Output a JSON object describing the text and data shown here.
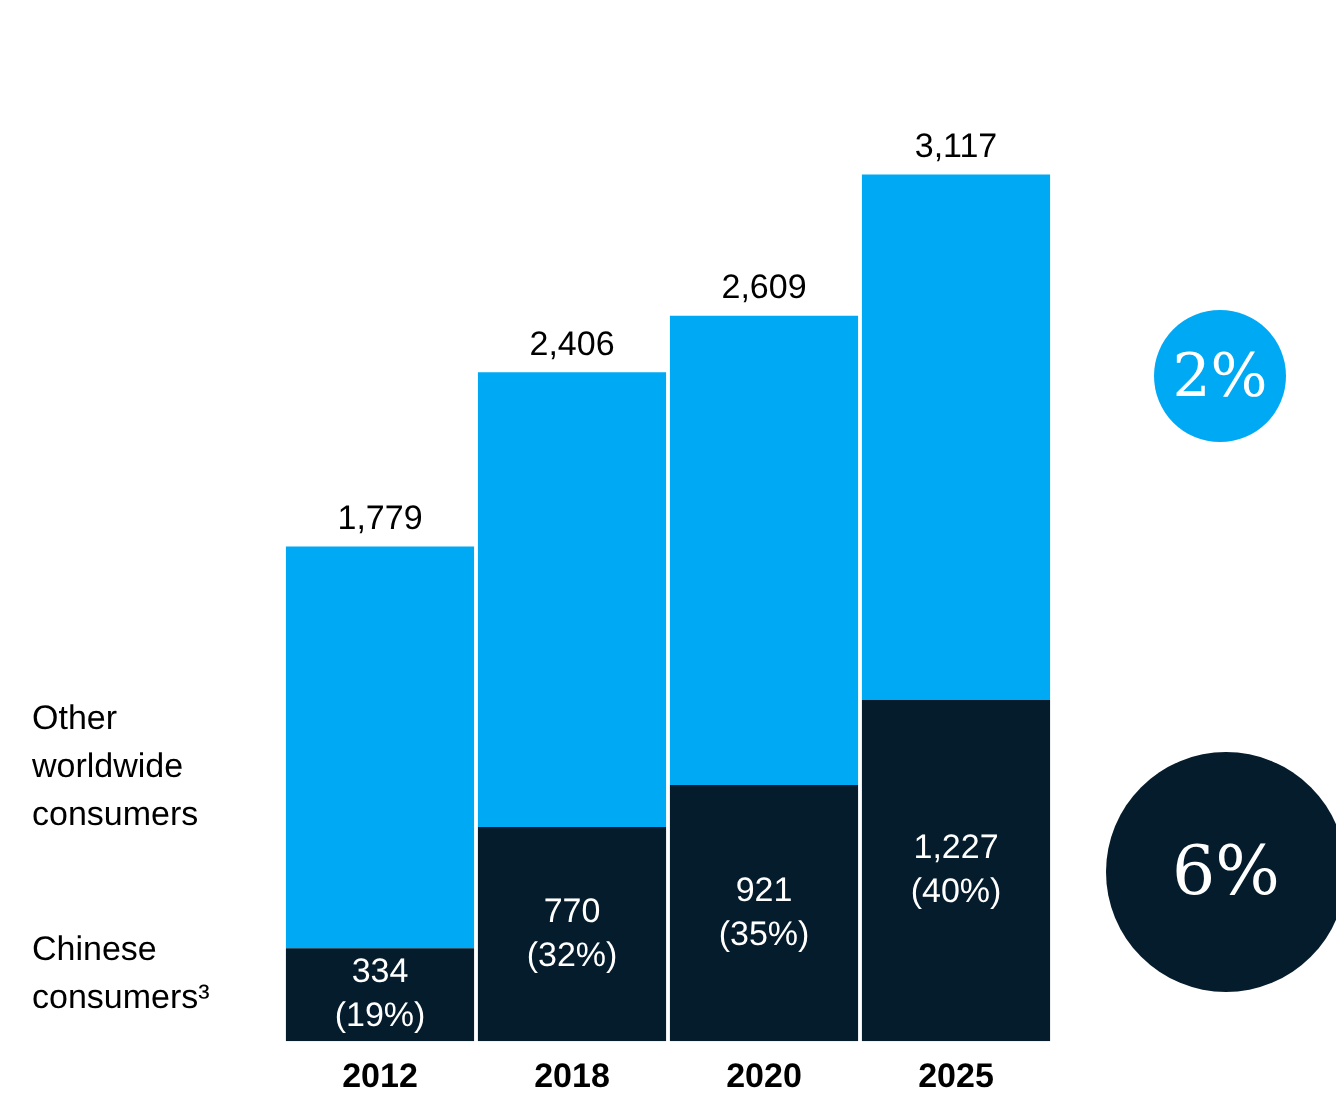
{
  "chart_data": {
    "type": "bar",
    "stacked": true,
    "categories": [
      "2012",
      "2018",
      "2020",
      "2025"
    ],
    "series": [
      {
        "name": "Chinese consumers³",
        "color": "#051c2c",
        "values": [
          334,
          770,
          921,
          1227
        ],
        "value_labels": [
          "334 (19%)",
          "770 (32%)",
          "921 (35%)",
          "1,227 (40%)"
        ]
      },
      {
        "name": "Other worldwide consumers",
        "color": "#00a9f4",
        "values": [
          1445,
          1636,
          1688,
          1890
        ]
      }
    ],
    "totals": [
      "1,779",
      "2,406",
      "2,609",
      "3,117"
    ],
    "annotations": [
      "2%",
      "6%"
    ],
    "tick_labels": "x",
    "grid": false,
    "legend": false
  }
}
